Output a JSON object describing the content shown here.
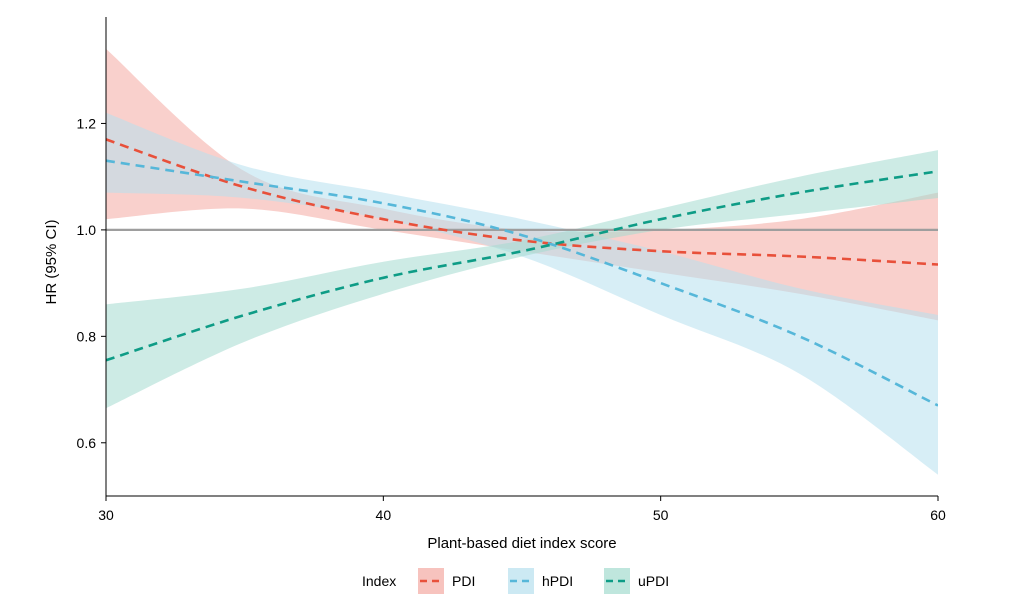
{
  "chart_data": {
    "type": "line",
    "title": "",
    "xlabel": "Plant-based diet index score",
    "ylabel": "HR (95% CI)",
    "xlim": [
      30,
      60
    ],
    "ylim": [
      0.5,
      1.4
    ],
    "xticks": [
      30,
      40,
      50,
      60
    ],
    "xtick_labels": [
      "30",
      "40",
      "50",
      "60"
    ],
    "yticks": [
      0.6,
      0.8,
      1.0,
      1.2
    ],
    "ytick_labels": [
      "0.6",
      "0.8",
      "1.0",
      "1.2"
    ],
    "reference_line": 1.0,
    "grid": false,
    "legend": {
      "title": "Index",
      "placement": "bottom"
    },
    "x": [
      30,
      35,
      40,
      45,
      50,
      55,
      60
    ],
    "series": [
      {
        "name": "PDI",
        "color": "#E8503A",
        "band_color": "#F4A9A2",
        "values": [
          1.17,
          1.08,
          1.02,
          0.98,
          0.96,
          0.95,
          0.935
        ],
        "lower": [
          1.02,
          1.04,
          1.0,
          0.96,
          0.92,
          0.88,
          0.83
        ],
        "upper": [
          1.34,
          1.11,
          1.04,
          1.0,
          1.0,
          1.02,
          1.07
        ]
      },
      {
        "name": "hPDI",
        "color": "#56B7D9",
        "band_color": "#B7E0EE",
        "values": [
          1.13,
          1.09,
          1.05,
          0.99,
          0.9,
          0.8,
          0.67
        ],
        "lower": [
          1.07,
          1.06,
          1.02,
          0.95,
          0.84,
          0.73,
          0.54
        ],
        "upper": [
          1.22,
          1.12,
          1.07,
          1.02,
          0.96,
          0.89,
          0.84
        ]
      },
      {
        "name": "uPDI",
        "color": "#0E9C86",
        "band_color": "#A4DBCF",
        "values": [
          0.755,
          0.84,
          0.91,
          0.96,
          1.02,
          1.07,
          1.11
        ],
        "lower": [
          0.665,
          0.79,
          0.88,
          0.95,
          1.0,
          1.03,
          1.06
        ],
        "upper": [
          0.86,
          0.89,
          0.94,
          0.98,
          1.04,
          1.1,
          1.15
        ]
      }
    ]
  }
}
